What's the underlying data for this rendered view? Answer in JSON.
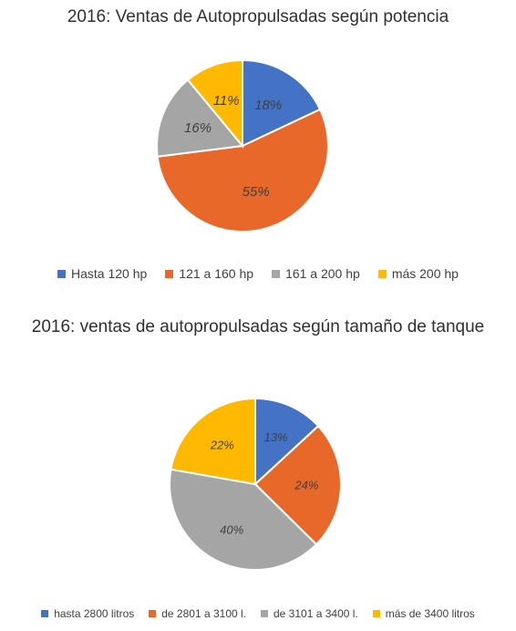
{
  "chart_data": [
    {
      "type": "pie",
      "title": "2016: Ventas de Autopropulsadas según potencia",
      "categories": [
        "Hasta 120 hp",
        "121 a 160 hp",
        "161 a 200 hp",
        "más 200 hp"
      ],
      "values": [
        18,
        55,
        16,
        11
      ],
      "labels": [
        "18%",
        "55%",
        "16%",
        "11%"
      ],
      "colors": [
        "#4472C4",
        "#E8682A",
        "#A5A5A5",
        "#FFB900"
      ],
      "legend": "bottom"
    },
    {
      "type": "pie",
      "title": "2016: ventas de autopropulsadas según tamaño de tanque",
      "categories": [
        "hasta 2800 litros",
        "de 2801 a 3100 l.",
        "de 3101 a 3400 l.",
        "más de 3400 litros"
      ],
      "values": [
        13,
        24,
        40,
        22
      ],
      "labels": [
        "13%",
        "24%",
        "40%",
        "22%"
      ],
      "colors": [
        "#4472C4",
        "#E8682A",
        "#A5A5A5",
        "#FFB900"
      ],
      "legend": "bottom"
    }
  ]
}
